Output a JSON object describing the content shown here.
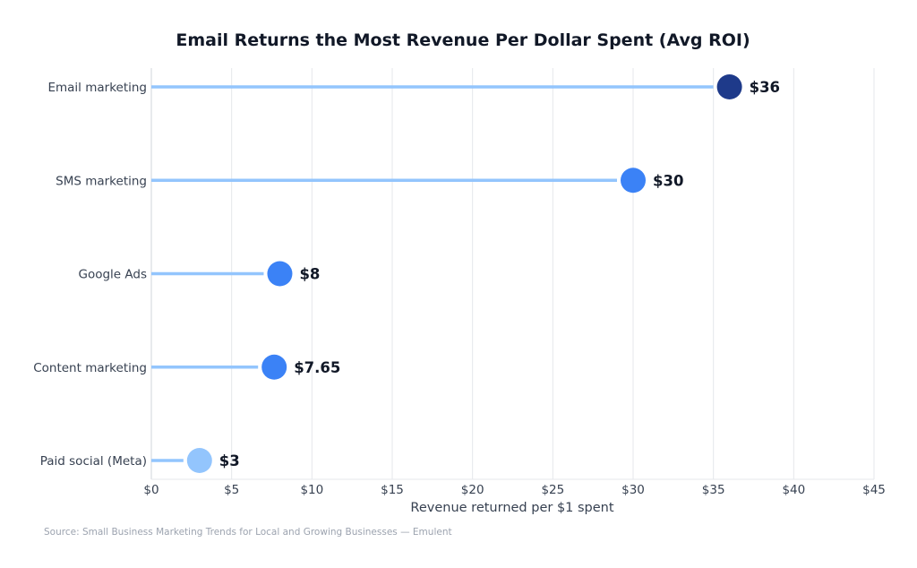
{
  "chart_data": {
    "type": "lollipop",
    "title": "Email Returns the Most Revenue Per Dollar Spent (Avg ROI)",
    "xlabel": "Revenue returned per $1 spent",
    "ylabel": "",
    "xlim": [
      0,
      45
    ],
    "xticks": [
      0,
      5,
      10,
      15,
      20,
      25,
      30,
      35,
      40,
      45
    ],
    "xtick_labels": [
      "$0",
      "$5",
      "$10",
      "$15",
      "$20",
      "$25",
      "$30",
      "$35",
      "$40",
      "$45"
    ],
    "grid": "vertical",
    "categories": [
      "Email marketing",
      "SMS marketing",
      "Google Ads",
      "Content marketing",
      "Paid social (Meta)"
    ],
    "values": [
      36,
      30,
      8,
      7.65,
      3
    ],
    "data_labels": [
      "$36",
      "$30",
      "$8",
      "$7.65",
      "$3"
    ],
    "dot_colors": [
      "#1e3a8a",
      "#3b82f6",
      "#3b82f6",
      "#3b82f6",
      "#93c5fd"
    ],
    "stem_color": "#93c5fd",
    "source": "Source: Small Business Marketing Trends for Local and Growing Businesses — Emulent"
  }
}
